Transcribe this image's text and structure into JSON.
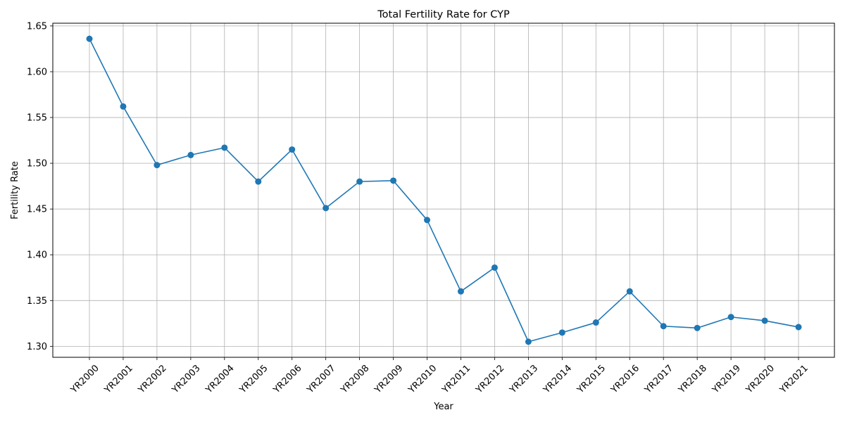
{
  "chart_data": {
    "type": "line",
    "title": "Total Fertility Rate for CYP",
    "xlabel": "Year",
    "ylabel": "Fertility Rate",
    "categories": [
      "YR2000",
      "YR2001",
      "YR2002",
      "YR2003",
      "YR2004",
      "YR2005",
      "YR2006",
      "YR2007",
      "YR2008",
      "YR2009",
      "YR2010",
      "YR2011",
      "YR2012",
      "YR2013",
      "YR2014",
      "YR2015",
      "YR2016",
      "YR2017",
      "YR2018",
      "YR2019",
      "YR2020",
      "YR2021"
    ],
    "series": [
      {
        "values": [
          1.636,
          1.562,
          1.498,
          1.509,
          1.517,
          1.48,
          1.515,
          1.451,
          1.48,
          1.481,
          1.438,
          1.36,
          1.386,
          1.305,
          1.315,
          1.326,
          1.36,
          1.322,
          1.32,
          1.332,
          1.328,
          1.321
        ],
        "color": "#1f77b4",
        "marker": "circle"
      }
    ],
    "yticks": [
      "1.30",
      "1.35",
      "1.40",
      "1.45",
      "1.50",
      "1.55",
      "1.60",
      "1.65"
    ],
    "ylim": [
      1.288,
      1.653
    ],
    "grid": true,
    "legend": "none"
  }
}
